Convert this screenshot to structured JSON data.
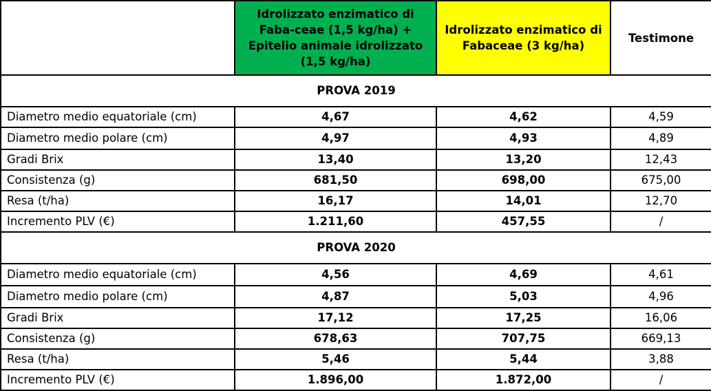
{
  "header": {
    "col1": "Idrolizzato enzimatico di Faba-ceae (1,5 kg/ha) + Epitelio animale idrolizzato (1,5 kg/ha)",
    "col2": "Idrolizzato enzimatico di Fabaceae (3 kg/ha)",
    "col3": "Testimone"
  },
  "colors": {
    "col1_bg": "#00b050",
    "col2_bg": "#ffff00"
  },
  "sections": [
    {
      "title": "PROVA 2019",
      "rows": [
        {
          "label": "Diametro medio equatoriale (cm)",
          "v1": "4,67",
          "v2": "4,62",
          "v3": "4,59"
        },
        {
          "label": "Diametro medio polare (cm)",
          "v1": "4,97",
          "v2": "4,93",
          "v3": "4,89"
        },
        {
          "label": "Gradi Brix",
          "v1": "13,40",
          "v2": "13,20",
          "v3": "12,43"
        },
        {
          "label": "Consistenza (g)",
          "v1": "681,50",
          "v2": "698,00",
          "v3": "675,00"
        },
        {
          "label": "Resa (t/ha)",
          "v1": "16,17",
          "v2": "14,01",
          "v3": "12,70"
        },
        {
          "label": "Incremento PLV (€)",
          "v1": "1.211,60",
          "v2": "457,55",
          "v3": "/"
        }
      ]
    },
    {
      "title": "PROVA 2020",
      "rows": [
        {
          "label": "Diametro medio equatoriale (cm)",
          "v1": "4,56",
          "v2": "4,69",
          "v3": "4,61"
        },
        {
          "label": "Diametro medio polare (cm)",
          "v1": "4,87",
          "v2": "5,03",
          "v3": "4,96"
        },
        {
          "label": "Gradi Brix",
          "v1": "17,12",
          "v2": "17,25",
          "v3": "16,06"
        },
        {
          "label": "Consistenza (g)",
          "v1": "678,63",
          "v2": "707,75",
          "v3": "669,13"
        },
        {
          "label": "Resa (t/ha)",
          "v1": "5,46",
          "v2": "5,44",
          "v3": "3,88"
        },
        {
          "label": "Incremento PLV (€)",
          "v1": "1.896,00",
          "v2": "1.872,00",
          "v3": "/"
        }
      ]
    }
  ]
}
